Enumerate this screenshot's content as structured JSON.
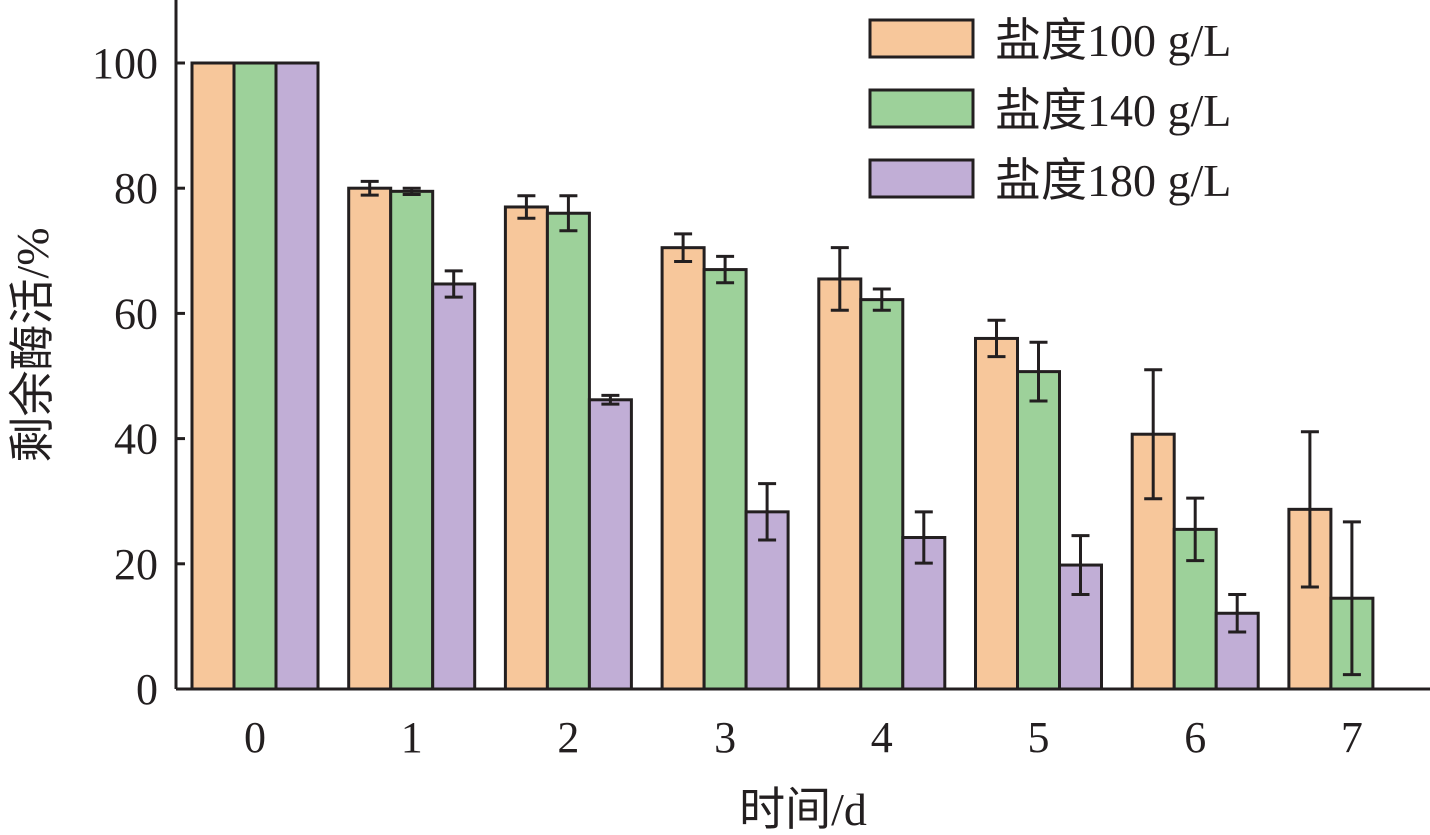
{
  "chart_data": {
    "type": "bar",
    "title": "",
    "xlabel": "时间/d",
    "ylabel": "剩余酶活/%",
    "categories": [
      "0",
      "1",
      "2",
      "3",
      "4",
      "5",
      "6",
      "7"
    ],
    "ylim": [
      0,
      100
    ],
    "yticks": [
      "0",
      "20",
      "40",
      "60",
      "80",
      "100"
    ],
    "grid": false,
    "legend_position": "top-right",
    "series": [
      {
        "name": "盐度100 g/L",
        "color": "#f7c79b",
        "values": [
          100,
          80,
          77,
          70.5,
          65.5,
          56,
          40.7,
          28.7
        ],
        "errors": [
          0,
          1.1,
          1.8,
          2.2,
          5,
          2.9,
          10.3,
          12.4
        ]
      },
      {
        "name": "盐度140 g/L",
        "color": "#9dd19a",
        "values": [
          100,
          79.5,
          76,
          67,
          62.2,
          50.7,
          25.5,
          14.5
        ],
        "errors": [
          0,
          0.5,
          2.8,
          2.1,
          1.7,
          4.7,
          5,
          12.2
        ]
      },
      {
        "name": "盐度180 g/L",
        "color": "#c1aed6",
        "values": [
          100,
          64.7,
          46.2,
          28.3,
          24.2,
          19.8,
          12.1,
          null
        ],
        "errors": [
          0,
          2.1,
          0.7,
          4.5,
          4.1,
          4.7,
          3,
          null
        ]
      }
    ]
  }
}
